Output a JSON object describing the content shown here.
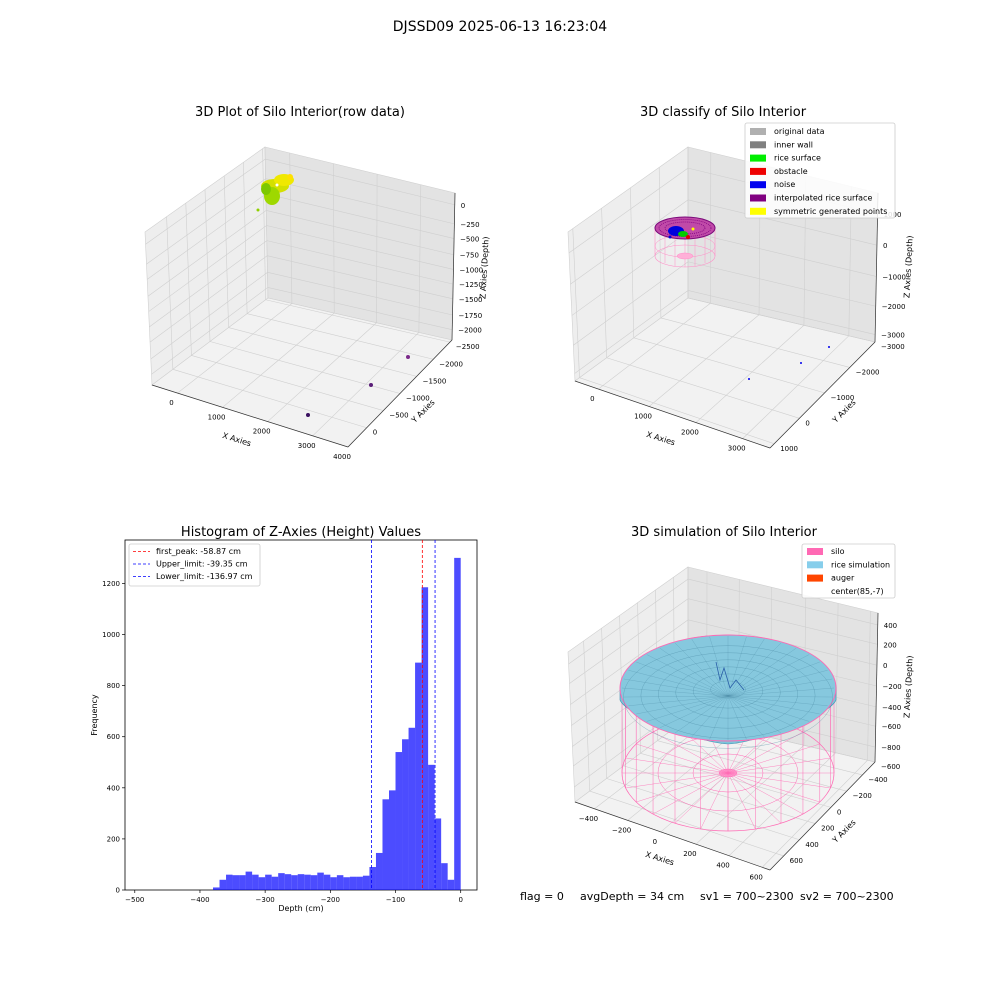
{
  "figure": {
    "suptitle": "DJSSD09 2025-06-13 16:23:04",
    "status_line": {
      "flag": "flag = 0",
      "avg_depth": "avgDepth = 34 cm",
      "sv1": "sv1 = 700~2300",
      "sv2": "sv2 = 700~2300"
    }
  },
  "chart_data": [
    {
      "type": "scatter3d",
      "title": "3D Plot of Silo Interior(row data)",
      "xlabel": "X Axies",
      "ylabel": "Y Axies",
      "zlabel": "Z Axies (Depth)",
      "x_ticks": [
        "0",
        "1000",
        "2000",
        "3000",
        "4000"
      ],
      "y_ticks": [
        "0",
        "−500",
        "−1000",
        "−1500",
        "−2000",
        "−2500"
      ],
      "z_ticks": [
        "0",
        "−250",
        "−500",
        "−750",
        "−1000",
        "−1250",
        "−1500",
        "−1750",
        "−2000"
      ],
      "grid": true
    },
    {
      "type": "scatter3d",
      "title": "3D classify of Silo Interior",
      "xlabel": "X Axies",
      "ylabel": "Y Axies",
      "zlabel": "Z Axies (Depth)",
      "x_ticks": [
        "0",
        "1000",
        "2000",
        "3000"
      ],
      "y_ticks": [
        "1000",
        "0",
        "−1000",
        "−2000",
        "−3000"
      ],
      "z_ticks": [
        "1000",
        "0",
        "−1000",
        "−2000",
        "−3000"
      ],
      "legend_position": "top-right",
      "legend": [
        {
          "label": "original data",
          "color": "#b0b0b0"
        },
        {
          "label": "inner wall",
          "color": "#808080"
        },
        {
          "label": "rice surface",
          "color": "#00ee00"
        },
        {
          "label": "obstacle",
          "color": "#ee0000"
        },
        {
          "label": "noise",
          "color": "#0000ee"
        },
        {
          "label": "interpolated rice surface",
          "color": "#800080"
        },
        {
          "label": "symmetric generated points",
          "color": "#ffff00"
        }
      ],
      "grid": true
    },
    {
      "type": "bar",
      "title": "Histogram of Z-Axies (Height) Values",
      "xlabel": "Depth (cm)",
      "ylabel": "Frequency",
      "xlim": [
        -515,
        25
      ],
      "ylim": [
        0,
        1370
      ],
      "x_ticks": [
        -500,
        -400,
        -300,
        -200,
        -100,
        0
      ],
      "y_ticks": [
        0,
        200,
        400,
        600,
        800,
        1000,
        1200
      ],
      "bin_start": -380,
      "bin_width": 10,
      "values": [
        10,
        40,
        60,
        58,
        58,
        72,
        60,
        50,
        60,
        52,
        66,
        62,
        58,
        62,
        60,
        58,
        68,
        60,
        50,
        58,
        50,
        52,
        52,
        56,
        90,
        145,
        355,
        390,
        540,
        590,
        635,
        890,
        1185,
        490,
        280,
        105,
        40,
        1300
      ],
      "bar_color": "#0000ff",
      "vlines": [
        {
          "label": "first_peak: -58.87 cm",
          "x": -58.87,
          "color": "#ff0000"
        },
        {
          "label": "Upper_limit: -39.35 cm",
          "x": -39.35,
          "color": "#0000ff"
        },
        {
          "label": "Lower_limit: -136.97 cm",
          "x": -136.97,
          "color": "#0000ff"
        }
      ],
      "legend_position": "top-left",
      "grid": false
    },
    {
      "type": "surface3d",
      "title": "3D simulation of Silo Interior",
      "xlabel": "X Axies",
      "ylabel": "Y Axies",
      "zlabel": "Z Axies (Depth)",
      "x_ticks": [
        "−400",
        "−200",
        "0",
        "200",
        "400",
        "600"
      ],
      "y_ticks": [
        "600",
        "400",
        "200",
        "0",
        "−200",
        "−400",
        "−600"
      ],
      "z_ticks": [
        "400",
        "200",
        "0",
        "−200",
        "−400",
        "−600",
        "−800"
      ],
      "legend_position": "top-right",
      "legend": [
        {
          "label": "silo",
          "color": "#ff69b4"
        },
        {
          "label": "rice simulation",
          "color": "#87ceeb"
        },
        {
          "label": "auger",
          "color": "#ff4500"
        },
        {
          "label": "center(85,-7)",
          "color": ""
        }
      ],
      "grid": true
    }
  ]
}
